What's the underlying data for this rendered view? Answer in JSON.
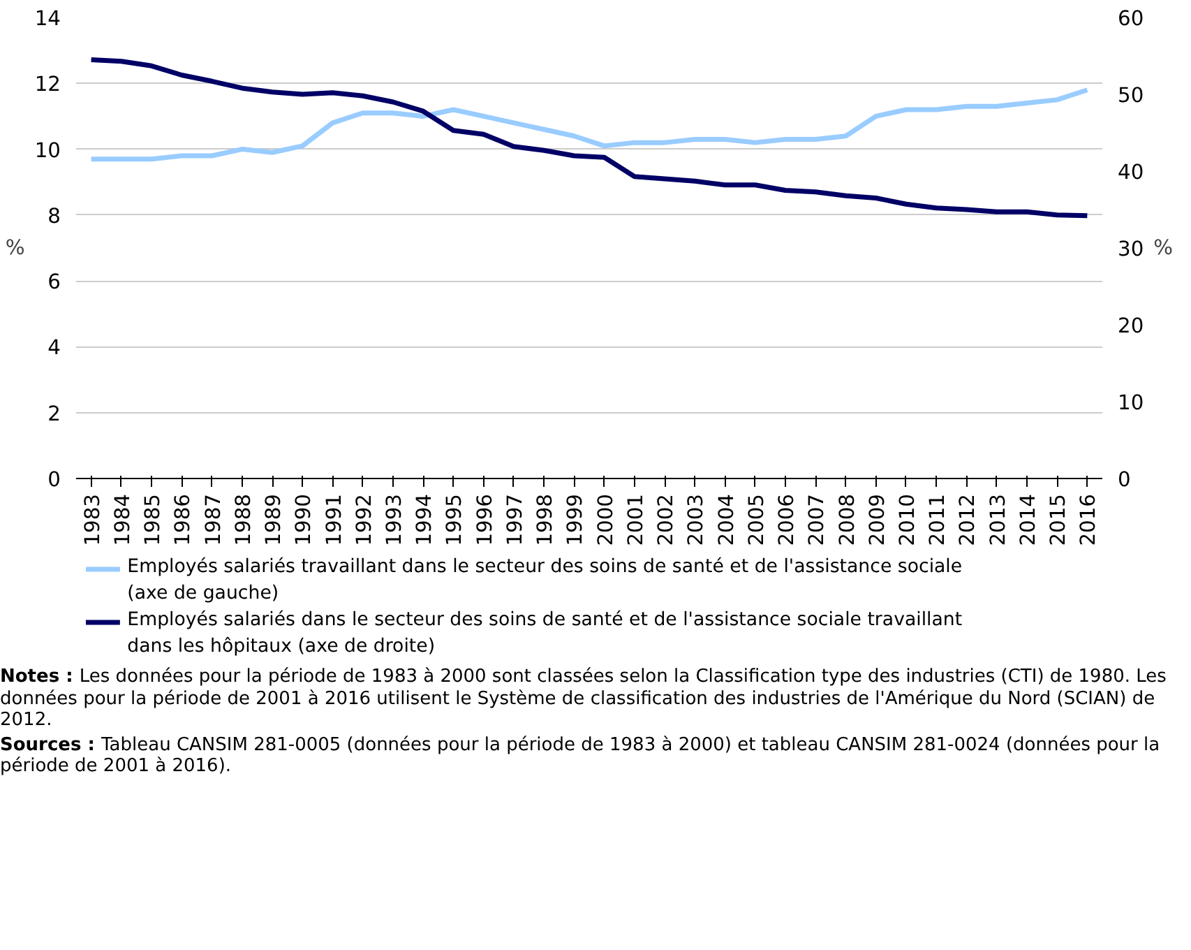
{
  "chart_data": {
    "type": "line",
    "ylabel": "%",
    "y2label": "%",
    "categories": [
      "1983",
      "1984",
      "1985",
      "1986",
      "1987",
      "1988",
      "1989",
      "1990",
      "1991",
      "1992",
      "1993",
      "1994",
      "1995",
      "1996",
      "1997",
      "1998",
      "1999",
      "2000",
      "2001",
      "2002",
      "2003",
      "2004",
      "2005",
      "2006",
      "2007",
      "2008",
      "2009",
      "2010",
      "2011",
      "2012",
      "2013",
      "2014",
      "2015",
      "2016"
    ],
    "ylim": [
      0,
      14
    ],
    "yticks": [
      0,
      2,
      4,
      6,
      8,
      10,
      12,
      14
    ],
    "y2lim": [
      0,
      60
    ],
    "y2ticks": [
      0,
      10,
      20,
      30,
      40,
      50,
      60
    ],
    "grid": "y",
    "legend": "bottom",
    "marker": "none",
    "line_style": "solid",
    "series": [
      {
        "name": "Employés salariés travaillant dans le secteur des soins de santé et de l'assistance sociale (axe de gauche)",
        "color": "#99ccff",
        "values": [
          9.7,
          9.7,
          9.7,
          9.8,
          9.8,
          10.0,
          9.9,
          10.1,
          10.8,
          11.1,
          11.1,
          11.0,
          11.2,
          11.0,
          10.8,
          10.6,
          10.4,
          10.1,
          10.2,
          10.2,
          10.3,
          10.3,
          10.2,
          10.3,
          10.3,
          10.4,
          11.0,
          11.2,
          11.2,
          11.3,
          11.3,
          11.4,
          11.5,
          11.8
        ]
      },
      {
        "name": "Employés salariés dans le secteur des soins de santé et de l'assistance sociale travaillant dans les hôpitaux (axe de droite)",
        "color": "#000066",
        "axis": "y2",
        "values": [
          54.5,
          54.3,
          53.7,
          52.5,
          51.7,
          50.8,
          50.3,
          50.0,
          50.2,
          49.8,
          49.0,
          47.8,
          45.3,
          44.8,
          43.2,
          42.7,
          42.0,
          41.8,
          39.3,
          39.0,
          38.7,
          38.2,
          38.2,
          37.5,
          37.3,
          36.8,
          36.5,
          35.7,
          35.2,
          35.0,
          34.7,
          34.7,
          34.3,
          34.2
        ]
      }
    ],
    "annotations": [
      "Notes : Les données pour la période de 1983 à 2000 sont classées selon la Classification type des industries (CTI) de 1980. Les données pour la période de 2001 à 2016 utilisent le Système de classification des industries de l'Amérique du Nord (SCIAN) de 2012.",
      "Sources : Tableau CANSIM 281-0005 (données pour la période de 1983 à 2000) et tableau CANSIM 281-0024 (données pour la période de 2001 à 2016)."
    ]
  }
}
